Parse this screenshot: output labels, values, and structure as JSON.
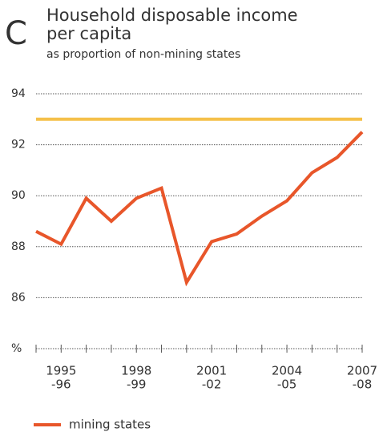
{
  "chart_data": {
    "type": "line",
    "panel_label": "C",
    "title": [
      "Household disposable income",
      "per capita"
    ],
    "subtitle": "as proportion of non-mining states",
    "categories": [
      null,
      [
        "1995",
        "-96"
      ],
      null,
      null,
      [
        "1998",
        "-99"
      ],
      null,
      null,
      [
        "2001",
        "-02"
      ],
      null,
      null,
      [
        "2004",
        "-05"
      ],
      null,
      null,
      [
        "2007",
        "-08"
      ]
    ],
    "series": [
      {
        "name": "mining states",
        "color": "#e8562a",
        "values": [
          88.6,
          88.1,
          89.9,
          89.0,
          89.9,
          90.3,
          86.6,
          88.2,
          88.5,
          89.2,
          89.8,
          90.9,
          91.5,
          92.5
        ]
      }
    ],
    "reference_line": {
      "value": 93,
      "color": "#f5c04a"
    },
    "ylim": [
      84,
      94
    ],
    "yticks": [
      {
        "value": 84,
        "label": "%"
      },
      86,
      88,
      90,
      92,
      94
    ],
    "grid": true
  }
}
